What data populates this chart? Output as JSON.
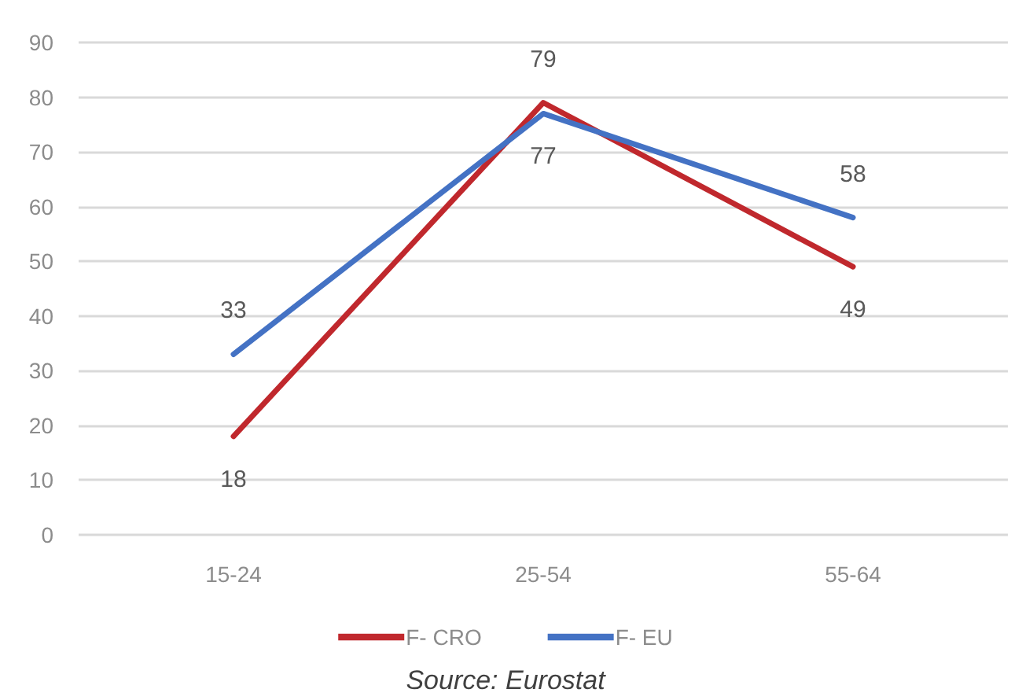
{
  "chart_data": {
    "type": "line",
    "categories": [
      "15-24",
      "25-54",
      "55-64"
    ],
    "series": [
      {
        "name": "F- CRO",
        "color": "#c0282d",
        "values": [
          18,
          79,
          49
        ]
      },
      {
        "name": "F- EU",
        "color": "#4472c4",
        "values": [
          33,
          77,
          58
        ]
      }
    ],
    "ylim": [
      0,
      90
    ],
    "yticks": [
      0,
      10,
      20,
      30,
      40,
      50,
      60,
      70,
      80,
      90
    ],
    "grid": "y",
    "legend": "bottom",
    "marker": "none",
    "line_style": "solid",
    "data_labels": true,
    "annotations": [
      "Source: Eurostat"
    ]
  }
}
